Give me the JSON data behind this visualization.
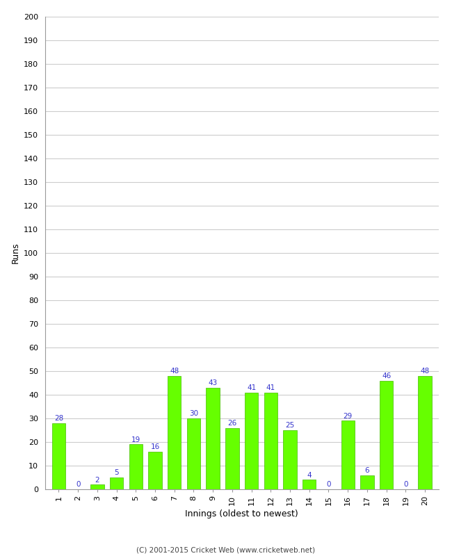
{
  "innings": [
    1,
    2,
    3,
    4,
    5,
    6,
    7,
    8,
    9,
    10,
    11,
    12,
    13,
    14,
    15,
    16,
    17,
    18,
    19,
    20
  ],
  "runs": [
    28,
    0,
    2,
    5,
    19,
    16,
    48,
    30,
    43,
    26,
    41,
    41,
    25,
    4,
    0,
    29,
    6,
    46,
    0,
    48
  ],
  "bar_color": "#66ff00",
  "bar_edge_color": "#44bb00",
  "label_color": "#3333cc",
  "xlabel": "Innings (oldest to newest)",
  "ylabel": "Runs",
  "ylim": [
    0,
    200
  ],
  "ytick_step": 10,
  "background_color": "#ffffff",
  "grid_color": "#cccccc",
  "footer": "(C) 2001-2015 Cricket Web (www.cricketweb.net)",
  "label_fontsize": 7.5,
  "axis_label_fontsize": 9,
  "tick_fontsize": 8
}
